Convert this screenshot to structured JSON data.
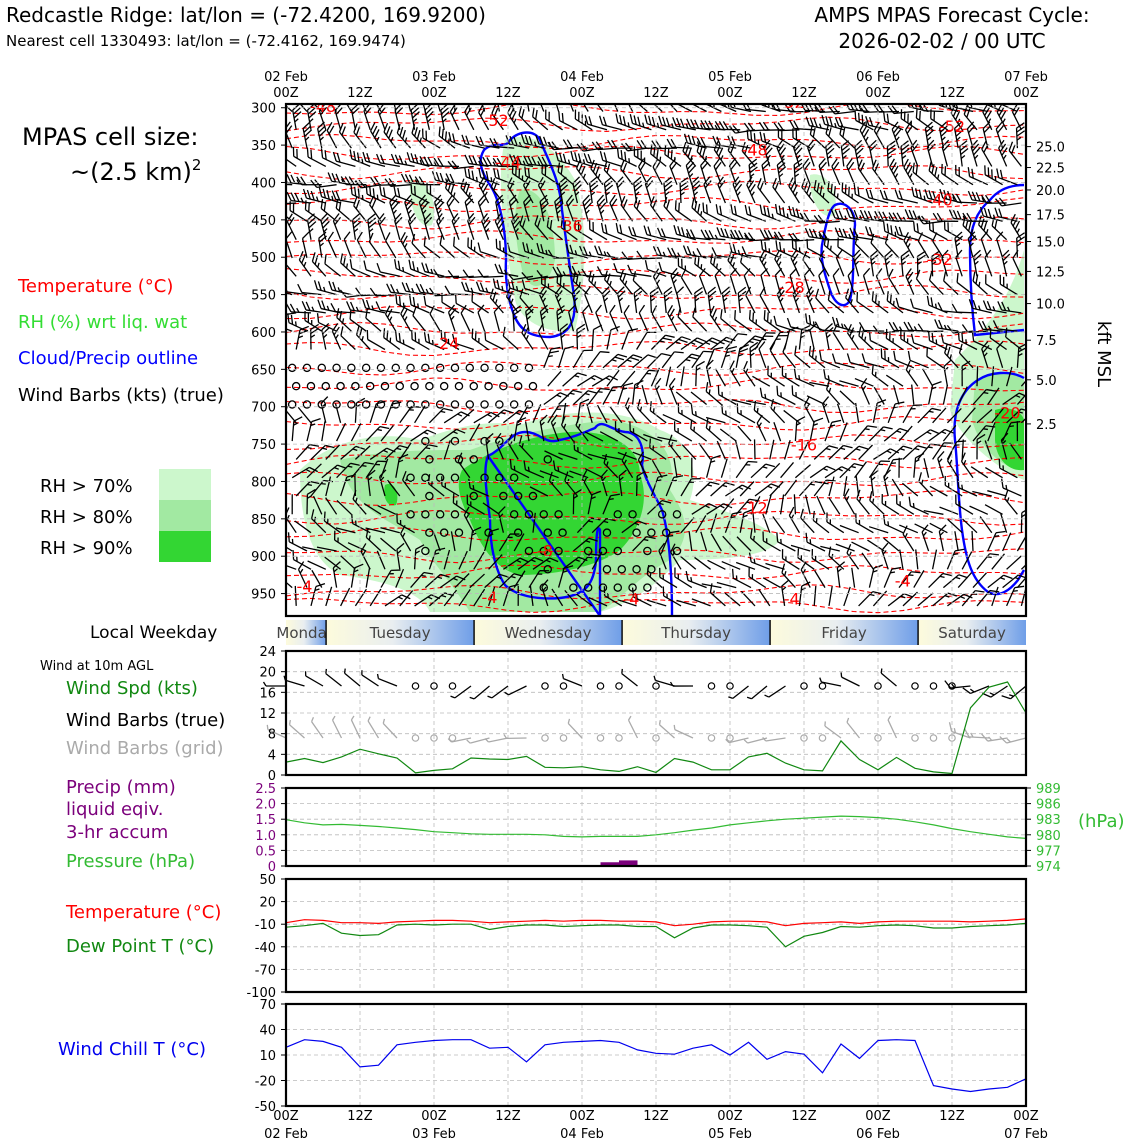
{
  "header": {
    "title": "Redcastle Ridge: lat/lon = (-72.4200, 169.9200)",
    "subtitle": "Nearest cell 1330493: lat/lon = (-72.4162, 169.9474)",
    "cycle_title": "AMPS MPAS Forecast Cycle:",
    "cycle_value": "2026-02-02 / 00 UTC"
  },
  "cell_size": {
    "line1": "MPAS cell size:",
    "line2": "~(2.5 km)",
    "exp": "2"
  },
  "legend": {
    "temperature": "Temperature (°C)",
    "rh": "RH (%) wrt liq. wat",
    "cloud": "Cloud/Precip outline",
    "wind": "Wind Barbs (kts) (true)",
    "rh70": "RH > 70%",
    "rh80": "RH > 80%",
    "rh90": "RH > 90%"
  },
  "colors": {
    "temperature": "#ff0000",
    "rh": "#33dd33",
    "cloud": "#0000ff",
    "rh70": "#ccf7cc",
    "rh80": "#a2e9a2",
    "rh90": "#33d633",
    "precip": "#7b007b",
    "pressure": "#33bb33",
    "dewpoint": "#118811",
    "windchill": "#0000ee",
    "grid_barb": "#aaaaaa"
  },
  "time_axis": {
    "top_dates": [
      "02 Feb",
      "03 Feb",
      "04 Feb",
      "05 Feb",
      "06 Feb",
      "07 Feb"
    ],
    "hours": [
      "00Z",
      "12Z",
      "00Z",
      "12Z",
      "00Z",
      "12Z",
      "00Z",
      "12Z",
      "00Z",
      "12Z",
      "00Z"
    ],
    "bottom_dates": [
      "02 Feb",
      "03 Feb",
      "04 Feb",
      "05 Feb",
      "06 Feb",
      "07 Feb"
    ]
  },
  "weekday": {
    "label": "Local Weekday",
    "days": [
      "Monday",
      "Tuesday",
      "Wednesday",
      "Thursday",
      "Friday",
      "Saturday"
    ]
  },
  "chart_data": [
    {
      "type": "contour",
      "name": "cross-section",
      "y_ticks": [
        300,
        350,
        400,
        450,
        500,
        550,
        600,
        650,
        700,
        750,
        800,
        850,
        900,
        950
      ],
      "ylim": [
        980,
        295
      ],
      "right_ticks": [
        "25.0",
        "22.5",
        "20.0",
        "17.5",
        "15.0",
        "12.5",
        "10.0",
        "7.5",
        "5.0",
        "2.5"
      ],
      "right_tick_pressures": [
        352,
        380,
        410,
        443,
        479,
        519,
        562,
        611,
        664,
        723
      ],
      "right_label": "kft MSL",
      "x_range_hours": [
        0,
        120
      ],
      "temperature_labels": [
        {
          "text": "-48",
          "t": 6,
          "p": 303
        },
        {
          "text": "-52",
          "t": 34,
          "p": 322
        },
        {
          "text": "-52",
          "t": 82,
          "p": 298
        },
        {
          "text": "-52",
          "t": 108,
          "p": 330
        },
        {
          "text": "-44",
          "t": 36,
          "p": 378
        },
        {
          "text": "-48",
          "t": 76,
          "p": 361
        },
        {
          "text": "-40",
          "t": 106,
          "p": 428
        },
        {
          "text": "-36",
          "t": 46,
          "p": 463
        },
        {
          "text": "-32",
          "t": 106,
          "p": 508
        },
        {
          "text": "-28",
          "t": 82,
          "p": 545
        },
        {
          "text": "-24",
          "t": 26,
          "p": 620
        },
        {
          "text": "-20",
          "t": 117,
          "p": 713
        },
        {
          "text": "-16",
          "t": 84,
          "p": 756
        },
        {
          "text": "-12",
          "t": 76,
          "p": 840
        },
        {
          "text": "-8",
          "t": 42,
          "p": 898
        },
        {
          "text": "-4",
          "t": 3,
          "p": 945
        },
        {
          "text": "-4",
          "t": 33,
          "p": 960
        },
        {
          "text": "-4",
          "t": 56,
          "p": 962
        },
        {
          "text": "-4",
          "t": 82,
          "p": 962
        },
        {
          "text": "-4",
          "t": 100,
          "p": 938
        }
      ]
    },
    {
      "type": "line",
      "name": "wind-speed",
      "label": "Wind Spd (kts)",
      "title": "Wind at 10m AGL",
      "barb_label": "Wind Barbs (true)",
      "grid_barb_label": "Wind Barbs (grid)",
      "ylim": [
        0,
        24
      ],
      "y_ticks": [
        0,
        4,
        8,
        12,
        16,
        20,
        24
      ],
      "x": [
        0,
        3,
        6,
        9,
        12,
        15,
        18,
        21,
        24,
        27,
        30,
        33,
        36,
        39,
        42,
        45,
        48,
        51,
        54,
        57,
        60,
        63,
        66,
        69,
        72,
        75,
        78,
        81,
        84,
        87,
        90,
        93,
        96,
        99,
        102,
        105,
        108,
        111,
        114,
        117,
        120
      ],
      "values": [
        2.5,
        3.2,
        2.4,
        3.5,
        5.0,
        4.1,
        3.3,
        0.4,
        0.9,
        1.2,
        3.3,
        3.1,
        3.0,
        3.6,
        1.5,
        1.4,
        1.6,
        1.0,
        0.7,
        1.6,
        0.5,
        3.2,
        2.5,
        1.0,
        1.0,
        3.5,
        4.2,
        2.3,
        1.0,
        0.8,
        6.6,
        3.0,
        1.0,
        3.4,
        1.3,
        0.6,
        0.3,
        13.0,
        17.0,
        18.0,
        12.0
      ]
    },
    {
      "type": "line",
      "name": "pressure-precip",
      "labels": [
        "Precip (mm)",
        "liquid eqiv.",
        "3-hr accum"
      ],
      "pressure_label": "Pressure (hPa)",
      "right_unit": "(hPa)",
      "precip_ylim": [
        0,
        2.5
      ],
      "precip_ticks": [
        "2.5",
        "2.0",
        "1.5",
        "1.0",
        "0.5",
        "0"
      ],
      "pressure_ylim": [
        974,
        989
      ],
      "pressure_ticks": [
        "989",
        "986",
        "983",
        "980",
        "977",
        "974"
      ],
      "x": [
        0,
        3,
        6,
        9,
        12,
        15,
        18,
        21,
        24,
        27,
        30,
        33,
        36,
        39,
        42,
        45,
        48,
        51,
        54,
        57,
        60,
        63,
        66,
        69,
        72,
        75,
        78,
        81,
        84,
        87,
        90,
        93,
        96,
        99,
        102,
        105,
        108,
        111,
        114,
        117,
        120
      ],
      "pressure": [
        982.9,
        982.3,
        981.9,
        982.0,
        981.8,
        981.6,
        981.3,
        981.0,
        980.6,
        980.4,
        980.2,
        980.1,
        980.1,
        980.1,
        980.0,
        979.7,
        979.6,
        979.7,
        979.7,
        979.7,
        980.0,
        980.4,
        980.9,
        981.3,
        981.9,
        982.3,
        982.7,
        983.0,
        983.2,
        983.4,
        983.6,
        983.5,
        983.3,
        983.0,
        982.5,
        981.9,
        981.2,
        980.6,
        980.1,
        979.6,
        979.3
      ],
      "precip_x": [
        51,
        54
      ],
      "precip_values": [
        0.12,
        0.18
      ]
    },
    {
      "type": "line",
      "name": "temperature-dewpoint",
      "temperature_label": "Temperature (°C)",
      "dewpoint_label": "Dew Point T (°C)",
      "ylim": [
        -100,
        50
      ],
      "y_ticks": [
        50,
        20,
        -10,
        -40,
        -70,
        -100
      ],
      "x": [
        0,
        3,
        6,
        9,
        12,
        15,
        18,
        21,
        24,
        27,
        30,
        33,
        36,
        39,
        42,
        45,
        48,
        51,
        54,
        57,
        60,
        63,
        66,
        69,
        72,
        75,
        78,
        81,
        84,
        87,
        90,
        93,
        96,
        99,
        102,
        105,
        108,
        111,
        114,
        117,
        120
      ],
      "temperature": [
        -8,
        -4,
        -5,
        -8,
        -8,
        -9,
        -7,
        -6,
        -5,
        -5,
        -6,
        -8,
        -7,
        -6,
        -5,
        -6,
        -5,
        -5,
        -6,
        -6,
        -7,
        -12,
        -10,
        -7,
        -6,
        -6,
        -7,
        -12,
        -9,
        -8,
        -7,
        -9,
        -7,
        -6,
        -6,
        -6,
        -6,
        -7,
        -6,
        -5,
        -3
      ],
      "dewpoint": [
        -14,
        -12,
        -9,
        -22,
        -25,
        -24,
        -11,
        -10,
        -11,
        -10,
        -10,
        -17,
        -13,
        -11,
        -11,
        -13,
        -12,
        -11,
        -11,
        -13,
        -13,
        -28,
        -15,
        -11,
        -11,
        -12,
        -14,
        -40,
        -26,
        -21,
        -13,
        -14,
        -12,
        -11,
        -12,
        -15,
        -15,
        -13,
        -12,
        -11,
        -9
      ]
    },
    {
      "type": "line",
      "name": "wind-chill",
      "label": "Wind Chill T (°C)",
      "ylim": [
        -50,
        70
      ],
      "y_ticks": [
        70,
        40,
        10,
        -20,
        -50
      ],
      "x": [
        0,
        3,
        6,
        9,
        12,
        15,
        18,
        21,
        24,
        27,
        30,
        33,
        36,
        39,
        42,
        45,
        48,
        51,
        54,
        57,
        60,
        63,
        66,
        69,
        72,
        75,
        78,
        81,
        84,
        87,
        90,
        93,
        96,
        99,
        102,
        105,
        108,
        111,
        114,
        117,
        120
      ],
      "values": [
        19,
        28,
        26,
        19,
        -4,
        -2,
        22,
        25,
        27,
        28,
        28,
        18,
        19,
        2,
        22,
        25,
        26,
        27,
        25,
        16,
        12,
        11,
        18,
        22,
        10,
        25,
        5,
        14,
        11,
        -11,
        23,
        6,
        27,
        28,
        27,
        -26,
        -30,
        -33,
        -30,
        -28,
        -18
      ]
    }
  ]
}
